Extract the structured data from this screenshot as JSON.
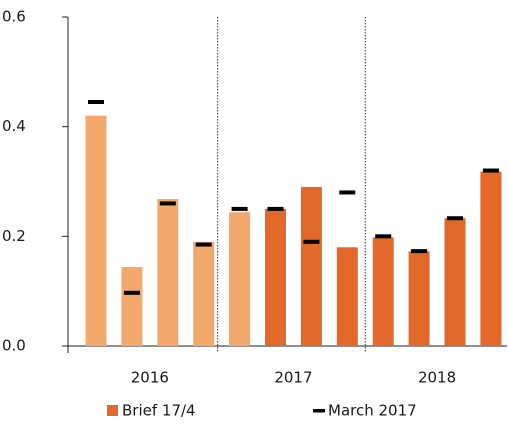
{
  "chart_data": {
    "type": "bar",
    "categories": [
      null,
      null,
      null,
      null,
      null,
      null,
      null,
      null,
      null,
      null,
      null,
      null
    ],
    "groups": [
      "2016",
      "2017",
      "2018"
    ],
    "series": [
      {
        "name": "Brief 17/4",
        "color": "#e2692a",
        "colors": [
          "#f3a86c",
          "#f3a86c",
          "#f3a86c",
          "#f3a86c",
          "#f3a86c",
          "#e2692a",
          "#e2692a",
          "#e2692a",
          "#e2692a",
          "#e2692a",
          "#e2692a",
          "#e2692a"
        ],
        "values": [
          0.42,
          0.144,
          0.268,
          0.19,
          0.244,
          0.25,
          0.29,
          0.18,
          0.198,
          0.173,
          0.233,
          0.318
        ]
      },
      {
        "name": "March 2017",
        "color": "#000000",
        "marker": "dash",
        "values": [
          0.445,
          0.097,
          0.26,
          0.185,
          0.25,
          0.25,
          0.19,
          0.28,
          0.2,
          0.173,
          0.233,
          0.32
        ]
      }
    ],
    "ylim": [
      0,
      0.6
    ],
    "yticks": [
      {
        "value": 0,
        "label": "0.0"
      },
      0.2,
      0.4,
      0.6
    ]
  }
}
